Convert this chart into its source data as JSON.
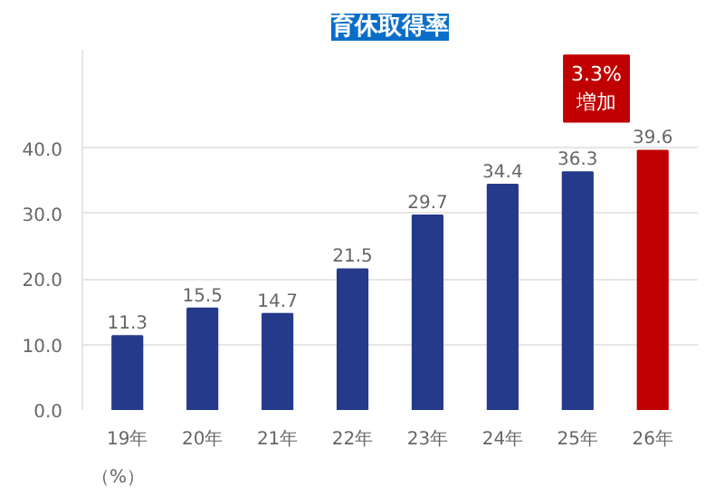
{
  "chart_data": {
    "type": "bar",
    "title": "育休取得率",
    "categories": [
      "19年",
      "20年",
      "21年",
      "22年",
      "23年",
      "24年",
      "25年",
      "26年"
    ],
    "values": [
      11.3,
      15.5,
      14.7,
      21.5,
      29.7,
      34.4,
      36.3,
      39.6
    ],
    "colors": [
      "#263a8c",
      "#263a8c",
      "#263a8c",
      "#263a8c",
      "#263a8c",
      "#263a8c",
      "#263a8c",
      "#c00000"
    ],
    "ylim": [
      0,
      55
    ],
    "yticks": [
      "0.0",
      "10.0",
      "20.0",
      "30.0",
      "40.0"
    ],
    "grid": "y",
    "data_labels": true,
    "annotations": [
      "（%）",
      {
        "text": "3.3%\n増加",
        "x": "26年",
        "y": 39.6
      }
    ]
  }
}
